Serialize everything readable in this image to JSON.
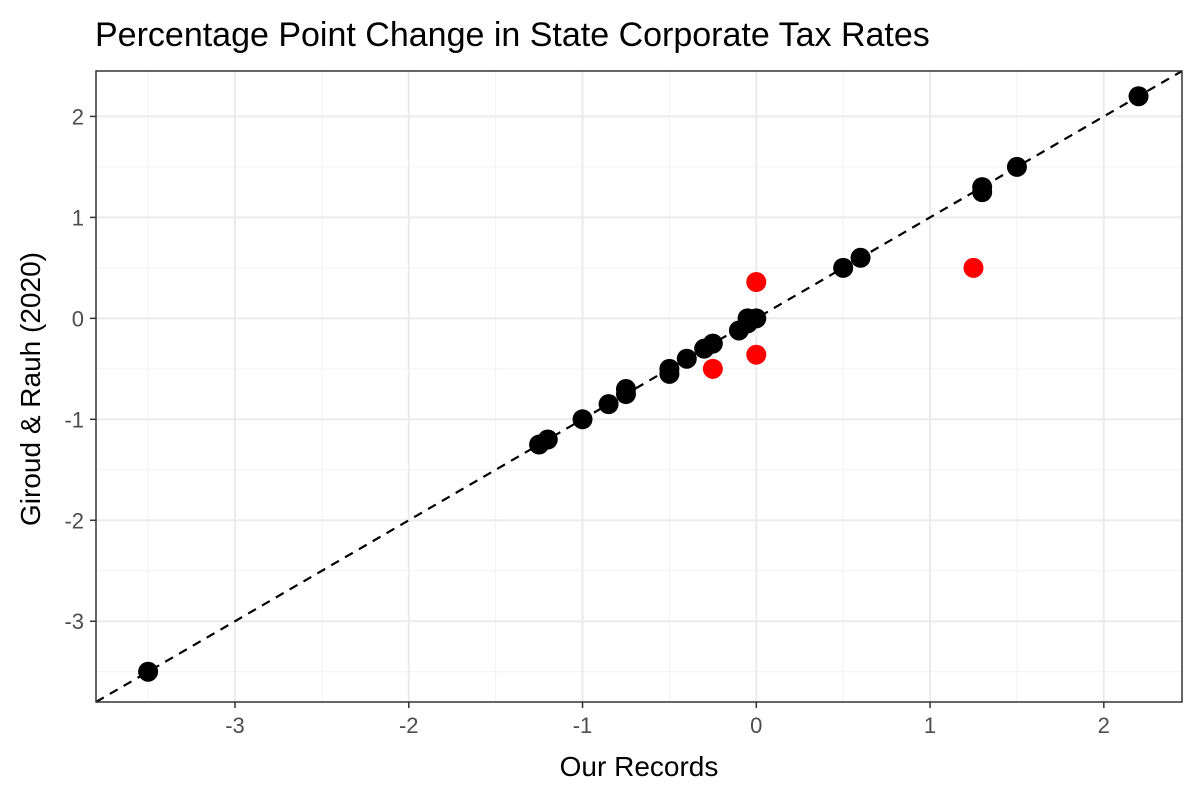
{
  "chart_data": {
    "type": "scatter",
    "title": "Percentage Point Change in State Corporate Tax Rates",
    "xlabel": "Our Records",
    "ylabel": "Giroud & Rauh (2020)",
    "xlim": [
      -3.8,
      2.45
    ],
    "ylim": [
      -3.8,
      2.45
    ],
    "x_ticks": [
      "-3",
      "-2",
      "-1",
      "0",
      "1",
      "2"
    ],
    "y_ticks": [
      "-3",
      "-2",
      "-1",
      "0",
      "1",
      "2"
    ],
    "grid": true,
    "reference_line": {
      "type": "identity",
      "style": "dashed"
    },
    "colors": {
      "match": "#000000",
      "mismatch": "#ff0000"
    },
    "series": [
      {
        "color": "#000000",
        "points": [
          {
            "x": -3.5,
            "y": -3.5
          },
          {
            "x": -1.25,
            "y": -1.25
          },
          {
            "x": -1.2,
            "y": -1.2
          },
          {
            "x": -1.0,
            "y": -1.0
          },
          {
            "x": -0.85,
            "y": -0.85
          },
          {
            "x": -0.75,
            "y": -0.75
          },
          {
            "x": -0.75,
            "y": -0.7
          },
          {
            "x": -0.5,
            "y": -0.55
          },
          {
            "x": -0.5,
            "y": -0.5
          },
          {
            "x": -0.4,
            "y": -0.4
          },
          {
            "x": -0.3,
            "y": -0.3
          },
          {
            "x": -0.25,
            "y": -0.25
          },
          {
            "x": -0.1,
            "y": -0.12
          },
          {
            "x": -0.05,
            "y": -0.05
          },
          {
            "x": -0.05,
            "y": 0.0
          },
          {
            "x": 0.0,
            "y": 0.0
          },
          {
            "x": 0.5,
            "y": 0.5
          },
          {
            "x": 0.6,
            "y": 0.6
          },
          {
            "x": 1.3,
            "y": 1.25
          },
          {
            "x": 1.3,
            "y": 1.3
          },
          {
            "x": 1.5,
            "y": 1.5
          },
          {
            "x": 2.2,
            "y": 2.2
          }
        ]
      },
      {
        "color": "#ff0000",
        "points": [
          {
            "x": 0.0,
            "y": 0.36
          },
          {
            "x": 0.0,
            "y": -0.36
          },
          {
            "x": -0.25,
            "y": -0.5
          },
          {
            "x": 1.25,
            "y": 0.5
          }
        ]
      }
    ]
  }
}
